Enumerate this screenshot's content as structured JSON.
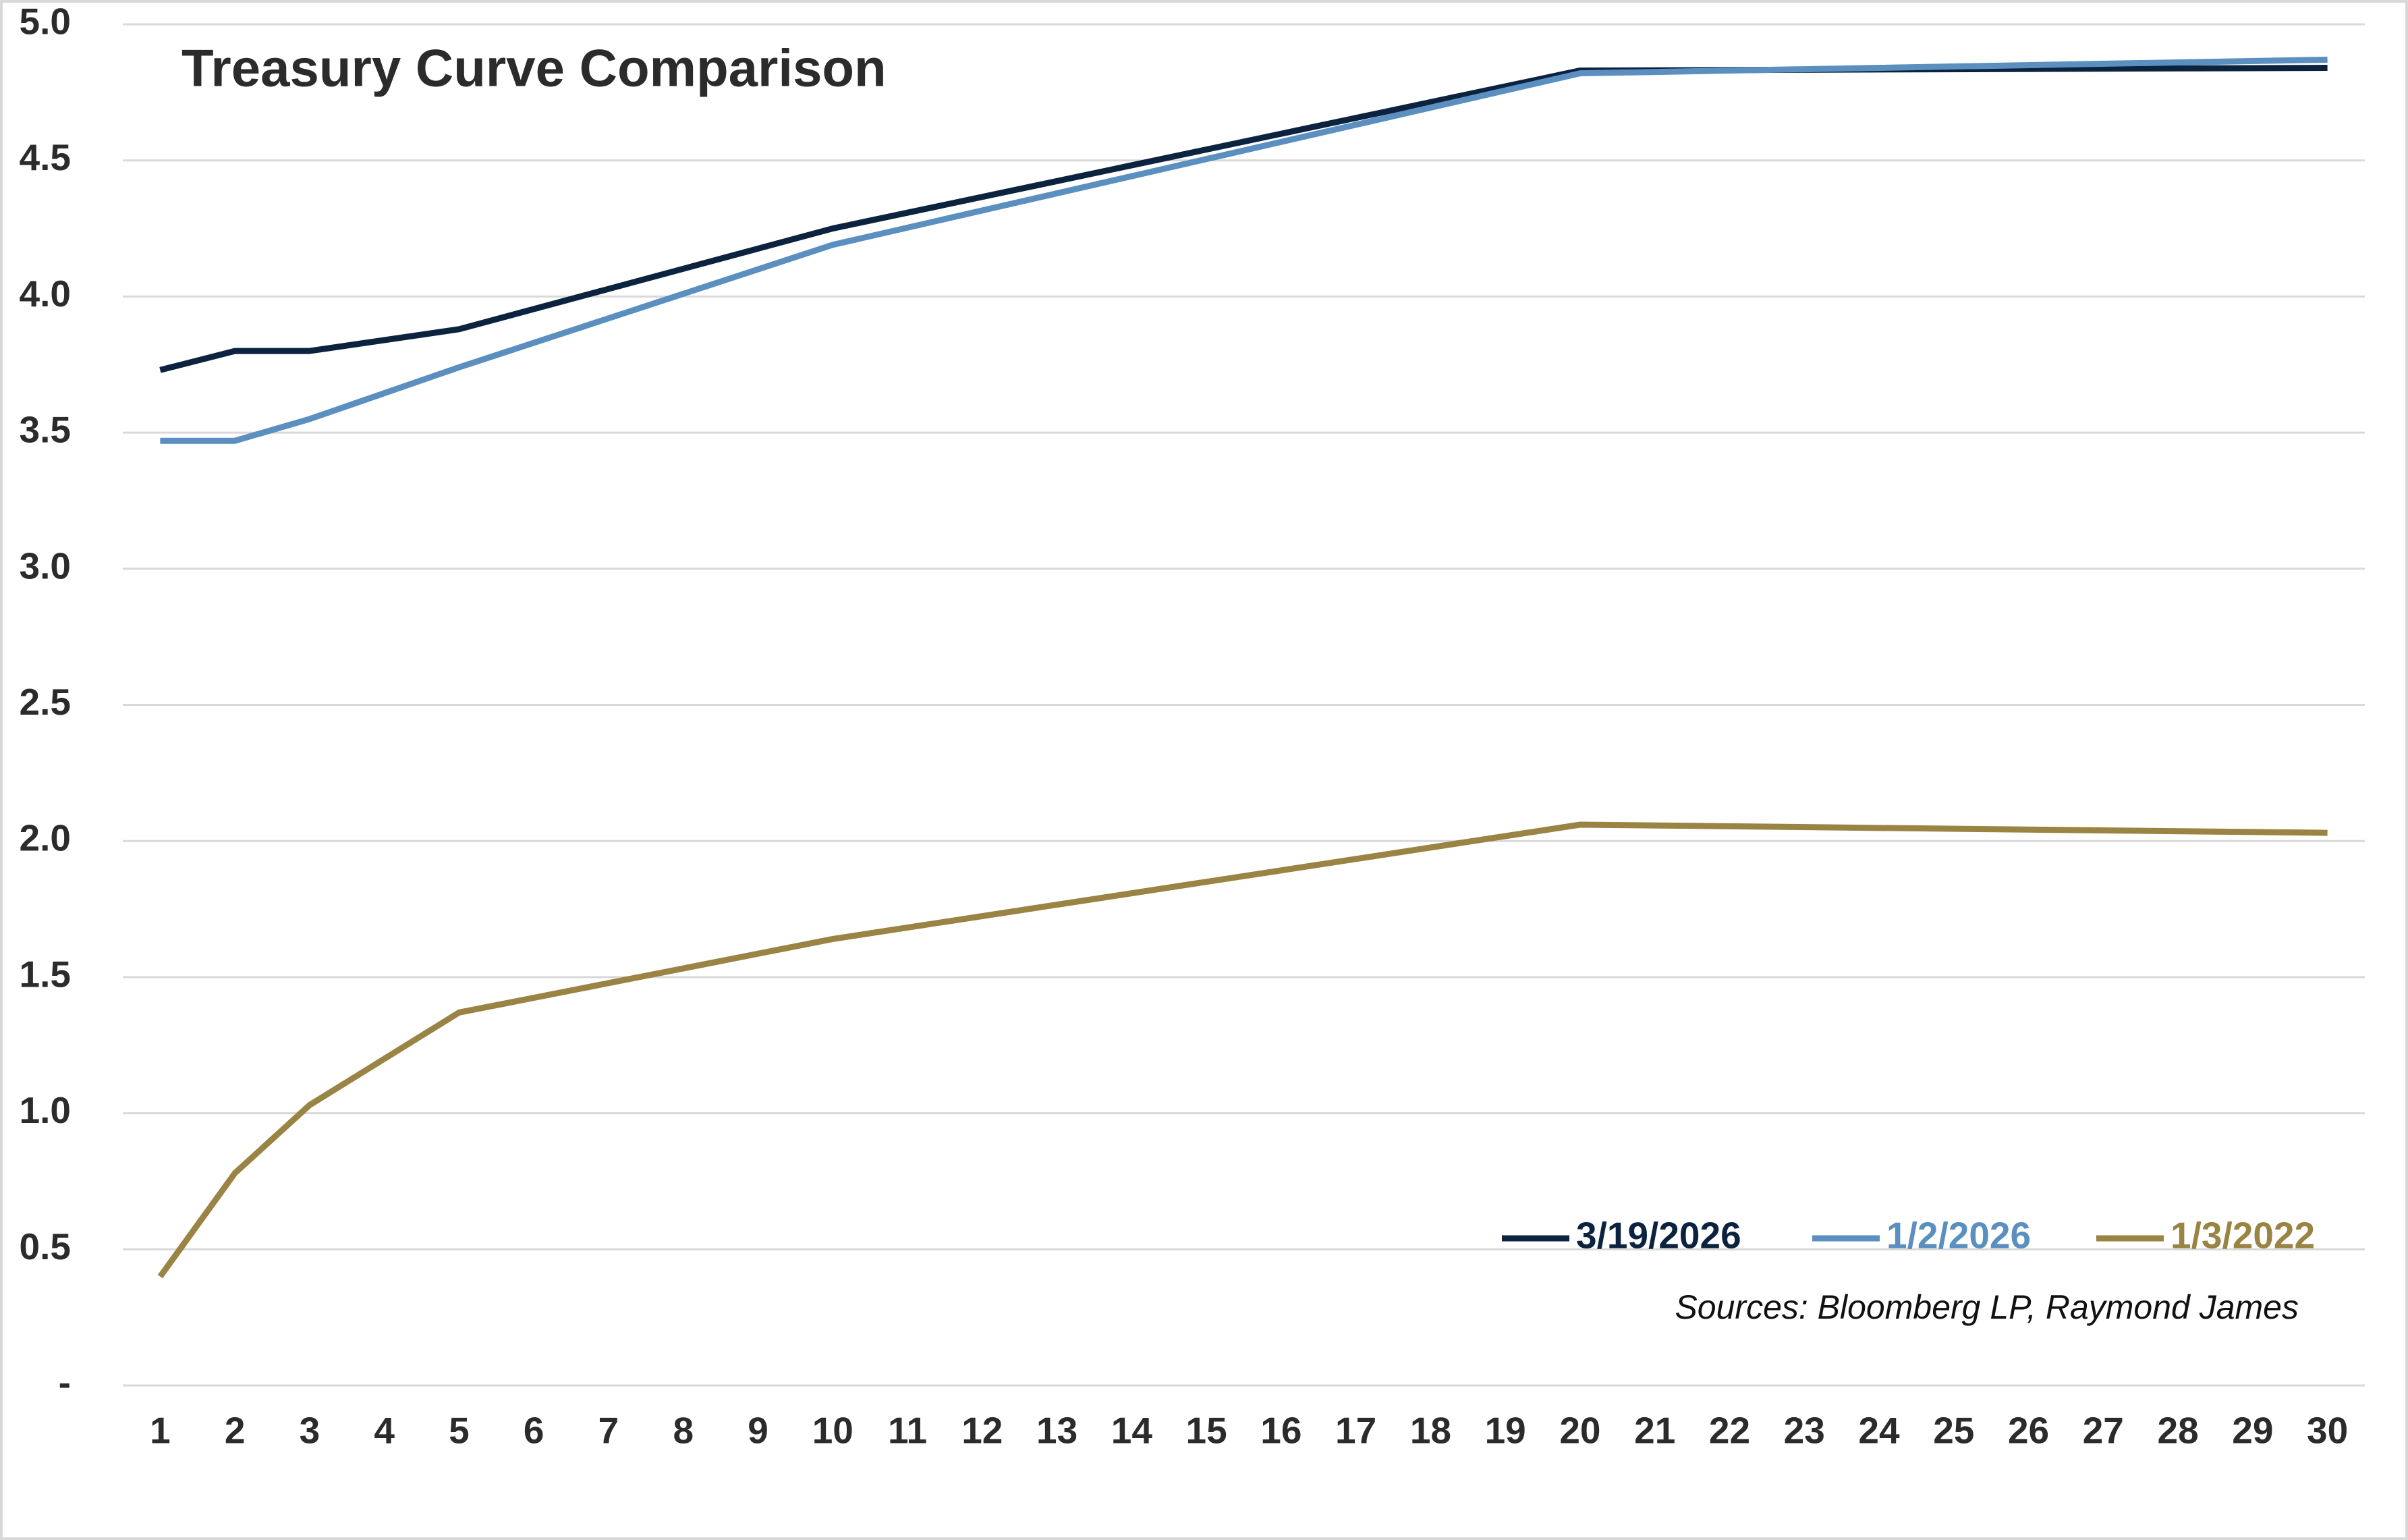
{
  "chart_data": {
    "type": "line",
    "title": "Treasury Curve Comparison",
    "annotation": "Sources: Bloomberg LP, Raymond James",
    "x": [
      1,
      2,
      3,
      5,
      10,
      20,
      30
    ],
    "xlim": [
      0.5,
      30.5
    ],
    "xticks": [
      1,
      2,
      3,
      4,
      5,
      6,
      7,
      8,
      9,
      10,
      11,
      12,
      13,
      14,
      15,
      16,
      17,
      18,
      19,
      20,
      21,
      22,
      23,
      24,
      25,
      26,
      27,
      28,
      29,
      30
    ],
    "ylim": [
      0,
      5
    ],
    "yticks": [
      {
        "value": 0,
        "label": "-"
      },
      0.5,
      {
        "value": 1,
        "label": "1.0"
      },
      1.5,
      {
        "value": 2,
        "label": "2.0"
      },
      2.5,
      {
        "value": 3,
        "label": "3.0"
      },
      3.5,
      {
        "value": 4,
        "label": "4.0"
      },
      4.5,
      {
        "value": 5,
        "label": "5.0"
      }
    ],
    "grid": true,
    "legend": "lower-right",
    "series": [
      {
        "name": "3/19/2026",
        "color": "#0c2340",
        "values": [
          3.73,
          3.8,
          3.8,
          3.88,
          4.25,
          4.83,
          4.84
        ]
      },
      {
        "name": "1/2/2026",
        "color": "#5b8fc0",
        "values": [
          3.47,
          3.47,
          3.55,
          3.74,
          4.19,
          4.82,
          4.87
        ]
      },
      {
        "name": "1/3/2022",
        "color": "#9a8444",
        "values": [
          0.4,
          0.78,
          1.03,
          1.37,
          1.64,
          2.06,
          2.03
        ]
      }
    ]
  }
}
